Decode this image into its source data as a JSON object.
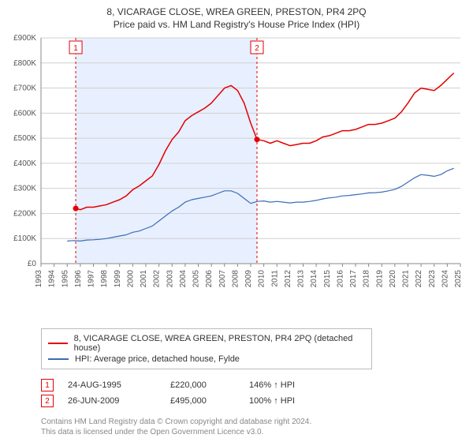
{
  "title": "8, VICARAGE CLOSE, WREA GREEN, PRESTON, PR4 2PQ",
  "subtitle": "Price paid vs. HM Land Registry's House Price Index (HPI)",
  "chart": {
    "type": "line",
    "x_years": [
      1993,
      1994,
      1995,
      1996,
      1997,
      1998,
      1999,
      2000,
      2001,
      2002,
      2003,
      2004,
      2005,
      2006,
      2007,
      2008,
      2009,
      2010,
      2011,
      2012,
      2013,
      2014,
      2015,
      2016,
      2017,
      2018,
      2019,
      2020,
      2021,
      2022,
      2023,
      2024,
      2025
    ],
    "y_ticks": [
      0,
      100,
      200,
      300,
      400,
      500,
      600,
      700,
      800,
      900
    ],
    "y_tick_labels": [
      "£0",
      "£100K",
      "£200K",
      "£300K",
      "£400K",
      "£500K",
      "£600K",
      "£700K",
      "£800K",
      "£900K"
    ],
    "y_max": 900,
    "axis_color": "#888888",
    "grid_color": "#d0d0d0",
    "tick_color": "#888888",
    "background_color": "#ffffff",
    "highlight_band": {
      "color": "#e8efff",
      "from_year": 1995.65,
      "to_year": 2009.48
    },
    "series": [
      {
        "key": "property",
        "color": "#e30000",
        "width": 1.5,
        "legend": "8, VICARAGE CLOSE, WREA GREEN, PRESTON, PR4 2PQ (detached house)",
        "points": [
          [
            1995.65,
            220
          ],
          [
            1996,
            215
          ],
          [
            1996.5,
            225
          ],
          [
            1997,
            225
          ],
          [
            1997.5,
            230
          ],
          [
            1998,
            235
          ],
          [
            1998.5,
            245
          ],
          [
            1999,
            255
          ],
          [
            1999.5,
            270
          ],
          [
            2000,
            295
          ],
          [
            2000.5,
            310
          ],
          [
            2001,
            330
          ],
          [
            2001.5,
            350
          ],
          [
            2002,
            395
          ],
          [
            2002.5,
            450
          ],
          [
            2003,
            495
          ],
          [
            2003.5,
            525
          ],
          [
            2004,
            570
          ],
          [
            2004.5,
            590
          ],
          [
            2005,
            605
          ],
          [
            2005.5,
            620
          ],
          [
            2006,
            640
          ],
          [
            2006.5,
            670
          ],
          [
            2007,
            700
          ],
          [
            2007.5,
            710
          ],
          [
            2008,
            690
          ],
          [
            2008.5,
            640
          ],
          [
            2009,
            560
          ],
          [
            2009.48,
            495
          ],
          [
            2010,
            490
          ],
          [
            2010.5,
            480
          ],
          [
            2011,
            490
          ],
          [
            2011.5,
            480
          ],
          [
            2012,
            470
          ],
          [
            2012.5,
            475
          ],
          [
            2013,
            480
          ],
          [
            2013.5,
            480
          ],
          [
            2014,
            490
          ],
          [
            2014.5,
            505
          ],
          [
            2015,
            510
          ],
          [
            2015.5,
            520
          ],
          [
            2016,
            530
          ],
          [
            2016.5,
            530
          ],
          [
            2017,
            535
          ],
          [
            2017.5,
            545
          ],
          [
            2018,
            555
          ],
          [
            2018.5,
            555
          ],
          [
            2019,
            560
          ],
          [
            2019.5,
            570
          ],
          [
            2020,
            580
          ],
          [
            2020.5,
            605
          ],
          [
            2021,
            640
          ],
          [
            2021.5,
            680
          ],
          [
            2022,
            700
          ],
          [
            2022.5,
            695
          ],
          [
            2023,
            690
          ],
          [
            2023.5,
            710
          ],
          [
            2024,
            735
          ],
          [
            2024.5,
            760
          ]
        ]
      },
      {
        "key": "hpi",
        "color": "#3a6db5",
        "width": 1.2,
        "legend": "HPI: Average price, detached house, Fylde",
        "points": [
          [
            1995,
            90
          ],
          [
            1995.5,
            92
          ],
          [
            1996,
            90
          ],
          [
            1996.5,
            94
          ],
          [
            1997,
            95
          ],
          [
            1997.5,
            97
          ],
          [
            1998,
            100
          ],
          [
            1998.5,
            105
          ],
          [
            1999,
            110
          ],
          [
            1999.5,
            115
          ],
          [
            2000,
            125
          ],
          [
            2000.5,
            130
          ],
          [
            2001,
            140
          ],
          [
            2001.5,
            150
          ],
          [
            2002,
            170
          ],
          [
            2002.5,
            190
          ],
          [
            2003,
            210
          ],
          [
            2003.5,
            225
          ],
          [
            2004,
            245
          ],
          [
            2004.5,
            255
          ],
          [
            2005,
            260
          ],
          [
            2005.5,
            265
          ],
          [
            2006,
            270
          ],
          [
            2006.5,
            280
          ],
          [
            2007,
            290
          ],
          [
            2007.5,
            290
          ],
          [
            2008,
            280
          ],
          [
            2008.5,
            260
          ],
          [
            2009,
            240
          ],
          [
            2009.5,
            248
          ],
          [
            2010,
            250
          ],
          [
            2010.5,
            245
          ],
          [
            2011,
            248
          ],
          [
            2011.5,
            245
          ],
          [
            2012,
            242
          ],
          [
            2012.5,
            245
          ],
          [
            2013,
            245
          ],
          [
            2013.5,
            248
          ],
          [
            2014,
            252
          ],
          [
            2014.5,
            258
          ],
          [
            2015,
            262
          ],
          [
            2015.5,
            265
          ],
          [
            2016,
            270
          ],
          [
            2016.5,
            272
          ],
          [
            2017,
            275
          ],
          [
            2017.5,
            278
          ],
          [
            2018,
            282
          ],
          [
            2018.5,
            283
          ],
          [
            2019,
            285
          ],
          [
            2019.5,
            290
          ],
          [
            2020,
            296
          ],
          [
            2020.5,
            308
          ],
          [
            2021,
            325
          ],
          [
            2021.5,
            342
          ],
          [
            2022,
            355
          ],
          [
            2022.5,
            352
          ],
          [
            2023,
            348
          ],
          [
            2023.5,
            355
          ],
          [
            2024,
            370
          ],
          [
            2024.5,
            380
          ]
        ]
      }
    ],
    "markers": [
      {
        "n": 1,
        "year": 1995.65,
        "value": 220,
        "dot_color": "#e30000",
        "label_box_border": "#e30000",
        "dash_color": "#e30000"
      },
      {
        "n": 2,
        "year": 2009.48,
        "value": 495,
        "dot_color": "#e30000",
        "label_box_border": "#e30000",
        "dash_color": "#e30000"
      }
    ],
    "label_fontsize": 10
  },
  "transactions": [
    {
      "n": 1,
      "date": "24-AUG-1995",
      "price": "£220,000",
      "pct": "146% ↑ HPI"
    },
    {
      "n": 2,
      "date": "26-JUN-2009",
      "price": "£495,000",
      "pct": "100% ↑ HPI"
    }
  ],
  "footer_line1": "Contains HM Land Registry data © Crown copyright and database right 2024.",
  "footer_line2": "This data is licensed under the Open Government Licence v3.0."
}
